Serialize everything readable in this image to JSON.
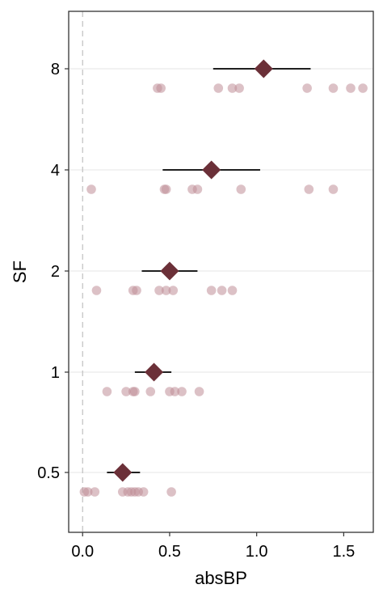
{
  "chart_data": {
    "type": "scatter",
    "title": "",
    "xlabel": "absBP",
    "ylabel": "SF",
    "xlim": [
      -0.08,
      1.67
    ],
    "x_ticks": [
      "0.0",
      "0.5",
      "1.0",
      "1.5"
    ],
    "x_tick_values": [
      0,
      0.5,
      1.0,
      1.5
    ],
    "categories": [
      "0.5",
      "1",
      "2",
      "4",
      "8"
    ],
    "grid": "horizontal major lines only",
    "reference_line_x": 0,
    "colors": {
      "points": "#bf8e98",
      "mean_marker": "#6b3038",
      "interval": "#000000",
      "grid": "#e6e6e6",
      "reference_line": "#bfbfbf"
    },
    "series": [
      {
        "category": "0.5",
        "mean": 0.23,
        "interval": [
          0.14,
          0.33
        ],
        "points": [
          0.01,
          0.03,
          0.07,
          0.23,
          0.26,
          0.28,
          0.3,
          0.32,
          0.35,
          0.51
        ]
      },
      {
        "category": "1",
        "mean": 0.41,
        "interval": [
          0.3,
          0.51
        ],
        "points": [
          0.14,
          0.25,
          0.29,
          0.3,
          0.39,
          0.5,
          0.53,
          0.57,
          0.67
        ]
      },
      {
        "category": "2",
        "mean": 0.5,
        "interval": [
          0.34,
          0.66
        ],
        "points": [
          0.08,
          0.29,
          0.31,
          0.44,
          0.48,
          0.52,
          0.74,
          0.8,
          0.86
        ]
      },
      {
        "category": "4",
        "mean": 0.74,
        "interval": [
          0.46,
          1.02
        ],
        "points": [
          0.05,
          0.47,
          0.48,
          0.63,
          0.66,
          0.91,
          1.3,
          1.44
        ]
      },
      {
        "category": "8",
        "mean": 1.04,
        "interval": [
          0.75,
          1.31
        ],
        "points": [
          0.43,
          0.45,
          0.78,
          0.86,
          0.9,
          1.29,
          1.44,
          1.54,
          1.61
        ]
      }
    ]
  }
}
